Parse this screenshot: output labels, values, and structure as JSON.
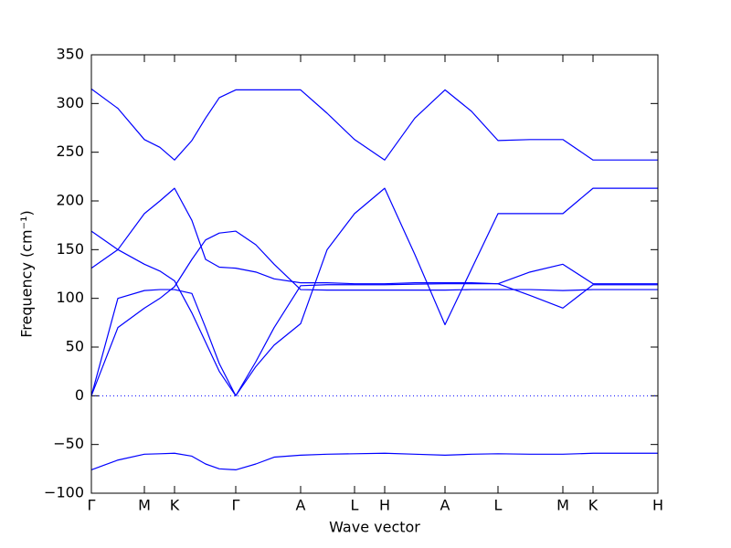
{
  "chart_data": {
    "type": "line",
    "x_label": "Wave vector",
    "y_label": "Frequency (cm⁻¹)",
    "xlim": [
      0,
      6.2
    ],
    "ylim": [
      -100,
      350
    ],
    "xticks": [
      {
        "value": 0,
        "label": "Γ"
      },
      {
        "value": 0.58,
        "label": "M"
      },
      {
        "value": 0.91,
        "label": "K"
      },
      {
        "value": 1.58,
        "label": "Γ"
      },
      {
        "value": 2.29,
        "label": "A"
      },
      {
        "value": 2.88,
        "label": "L"
      },
      {
        "value": 3.21,
        "label": "H"
      },
      {
        "value": 3.87,
        "label": "A"
      },
      {
        "value": 4.45,
        "label": "L"
      },
      {
        "value": 5.16,
        "label": "M"
      },
      {
        "value": 5.49,
        "label": "K"
      },
      {
        "value": 6.2,
        "label": "H"
      }
    ],
    "yticks": [
      {
        "value": -100,
        "label": "−100"
      },
      {
        "value": -50,
        "label": "−50"
      },
      0,
      50,
      100,
      150,
      200,
      250,
      300,
      350
    ],
    "hlines": [
      0
    ],
    "hline_color": "#0000ff",
    "x": [
      0,
      0.29,
      0.58,
      0.75,
      0.91,
      1.1,
      1.25,
      1.4,
      1.58,
      1.8,
      2.0,
      2.29,
      2.58,
      2.88,
      3.21,
      3.54,
      3.87,
      4.16,
      4.45,
      4.8,
      5.16,
      5.49,
      6.2
    ],
    "series": [
      {
        "color": "#0000ff",
        "values": [
          315,
          295,
          263,
          255,
          242,
          262,
          285,
          306,
          314,
          314,
          314,
          314,
          290,
          263,
          242,
          285,
          314,
          292,
          262,
          263,
          263,
          242,
          242
        ]
      },
      {
        "color": "#0000ff",
        "values": [
          131,
          150,
          187,
          200,
          213,
          180,
          140,
          132,
          131,
          127,
          120,
          116,
          116,
          115,
          115,
          116,
          116,
          116,
          115,
          103,
          90,
          114,
          114
        ]
      },
      {
        "color": "#0000ff",
        "values": [
          0,
          100,
          108,
          109,
          109,
          105,
          70,
          33,
          0,
          30,
          52,
          74,
          150,
          187,
          213,
          145,
          73,
          130,
          187,
          187,
          187,
          213,
          213
        ]
      },
      {
        "color": "#0000ff",
        "values": [
          0,
          70,
          90,
          100,
          112,
          140,
          160,
          167,
          169,
          155,
          135,
          109,
          108.5,
          108.5,
          108.5,
          108.5,
          108.5,
          109,
          109,
          109,
          108,
          109,
          109
        ]
      },
      {
        "color": "#0000ff",
        "values": [
          169,
          150,
          135,
          128,
          118,
          85,
          55,
          25,
          0,
          35,
          70,
          113,
          114,
          114,
          114,
          114.5,
          115,
          115,
          115,
          127,
          135,
          115,
          115
        ]
      },
      {
        "color": "#0000ff",
        "values": [
          -76,
          -66,
          -60,
          -59.5,
          -59,
          -62,
          -70,
          -75,
          -76,
          -70,
          -63,
          -61,
          -60,
          -59.5,
          -59,
          -60,
          -61,
          -60,
          -59.5,
          -60,
          -60,
          -59,
          -59
        ]
      }
    ]
  }
}
